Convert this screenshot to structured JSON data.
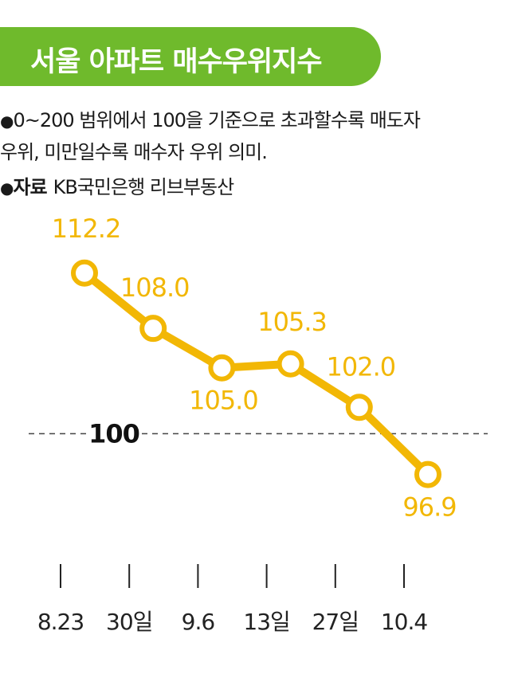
{
  "header": {
    "title": "서울 아파트 매수우위지수",
    "bullet": "●",
    "note_line1": "0~200 범위에서 100을 기준으로 초과할수록 매도자",
    "note_line2": "우위, 미만일수록 매수자 우위 의미.",
    "source_label": "자료",
    "source_value": "KB국민은행 리브부동산"
  },
  "colors": {
    "title_bg": "#6fba2c",
    "line": "#f2b705",
    "label": "#f2b705",
    "reference": "#444444"
  },
  "chart_data": {
    "type": "line",
    "categories": [
      "8.23",
      "30일",
      "9.6",
      "13일",
      "27일",
      "10.4"
    ],
    "values": [
      112.2,
      108.0,
      105.0,
      105.3,
      102.0,
      96.9
    ],
    "value_labels": [
      "112.2",
      "108.0",
      "105.0",
      "105.3",
      "102.0",
      "96.9"
    ],
    "reference_value": 100,
    "reference_label": "100",
    "ylim": [
      93,
      116
    ],
    "grid": false,
    "legend": "none"
  }
}
